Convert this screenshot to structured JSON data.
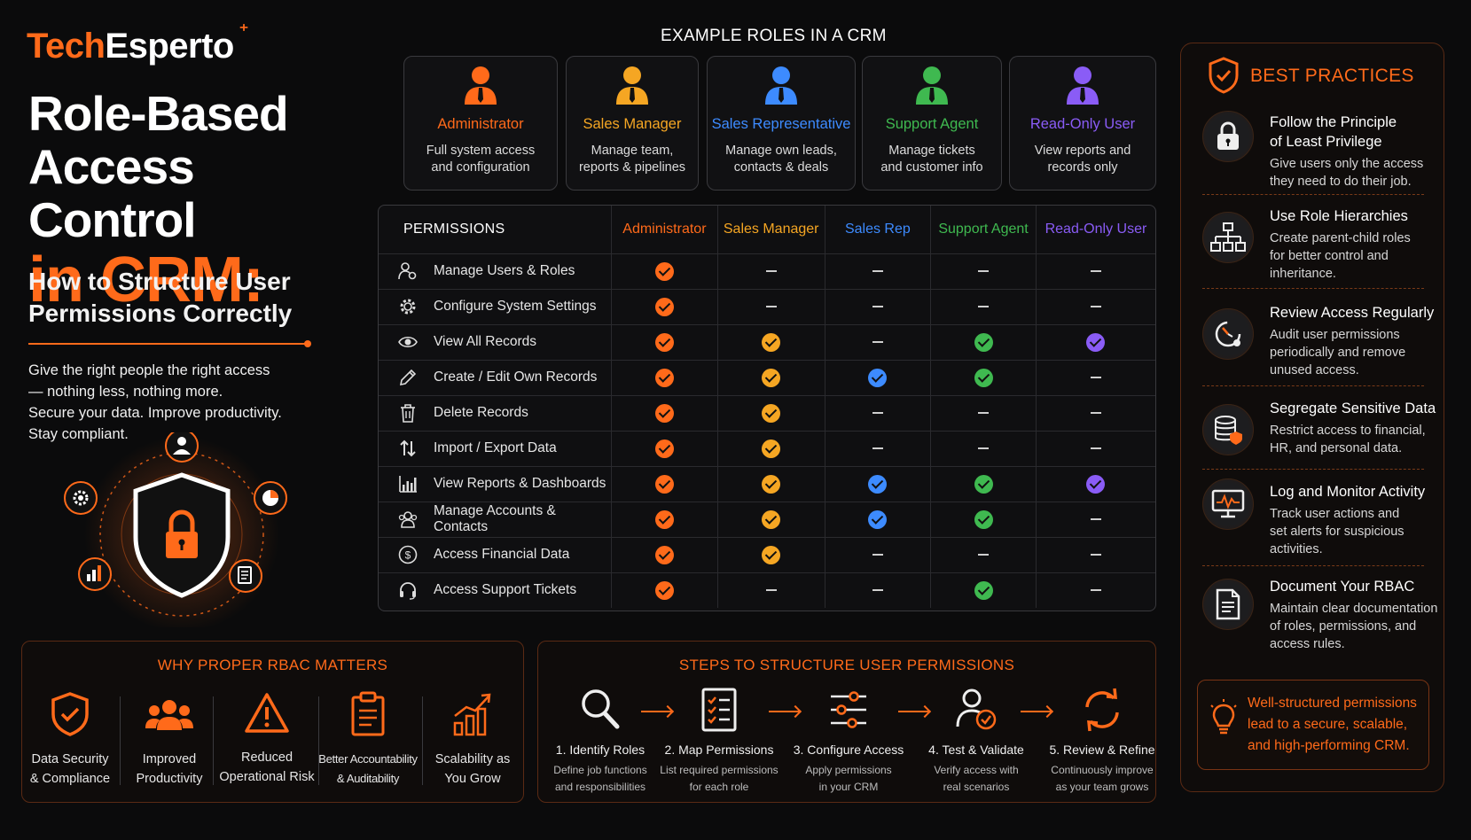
{
  "brand": {
    "part1": "Tech",
    "part2": "Esperto"
  },
  "hero": {
    "line1": "Role-Based",
    "line2": "Access Control",
    "line3": "in CRM:",
    "subtitle": "How to Structure User Permissions Correctly",
    "text": [
      "Give the right people the right access",
      "— nothing less, nothing more.",
      "Secure your data. Improve productivity.",
      "Stay compliant."
    ]
  },
  "roles_title": "EXAMPLE ROLES IN A CRM",
  "roles": [
    {
      "name": "Administrator",
      "desc": [
        "Full system access",
        "and configuration"
      ],
      "color": "#ff6a1a"
    },
    {
      "name": "Sales Manager",
      "desc": [
        "Manage team,",
        "reports & pipelines"
      ],
      "color": "#f5a623"
    },
    {
      "name": "Sales Representative",
      "desc": [
        "Manage own leads,",
        "contacts & deals"
      ],
      "color": "#3d8bff"
    },
    {
      "name": "Support Agent",
      "desc": [
        "Manage tickets",
        "and customer info"
      ],
      "color": "#3fb950"
    },
    {
      "name": "Read-Only User",
      "desc": [
        "View reports and",
        "records only"
      ],
      "color": "#8a5cf6"
    }
  ],
  "table": {
    "header": "PERMISSIONS",
    "columns": [
      {
        "label": "Administrator",
        "color": "#ff6a1a"
      },
      {
        "label": "Sales Manager",
        "color": "#f5a623"
      },
      {
        "label": "Sales Rep",
        "color": "#3d8bff"
      },
      {
        "label": "Support Agent",
        "color": "#3fb950"
      },
      {
        "label": "Read-Only User",
        "color": "#8a5cf6"
      }
    ],
    "rows": [
      {
        "label": "Manage Users & Roles",
        "icon": "users-gear-icon",
        "values": [
          1,
          0,
          0,
          0,
          0
        ]
      },
      {
        "label": "Configure System Settings",
        "icon": "gear-icon",
        "values": [
          1,
          0,
          0,
          0,
          0
        ]
      },
      {
        "label": "View All Records",
        "icon": "eye-icon",
        "values": [
          1,
          1,
          0,
          1,
          1
        ]
      },
      {
        "label": "Create / Edit Own Records",
        "icon": "pencil-icon",
        "values": [
          1,
          1,
          1,
          1,
          0
        ]
      },
      {
        "label": "Delete Records",
        "icon": "trash-icon",
        "values": [
          1,
          1,
          0,
          0,
          0
        ]
      },
      {
        "label": "Import / Export Data",
        "icon": "arrows-updown-icon",
        "values": [
          1,
          1,
          0,
          0,
          0
        ]
      },
      {
        "label": "View Reports & Dashboards",
        "icon": "bar-chart-icon",
        "values": [
          1,
          1,
          1,
          1,
          1
        ]
      },
      {
        "label": "Manage Accounts & Contacts",
        "icon": "contacts-icon",
        "values": [
          1,
          1,
          1,
          1,
          0
        ]
      },
      {
        "label": "Access Financial Data",
        "icon": "dollar-icon",
        "values": [
          1,
          1,
          0,
          0,
          0
        ]
      },
      {
        "label": "Access Support Tickets",
        "icon": "headset-icon",
        "values": [
          1,
          0,
          0,
          1,
          0
        ]
      }
    ]
  },
  "best_practices": {
    "title": "BEST PRACTICES",
    "items": [
      {
        "title": [
          "Follow the Principle",
          "of Least Privilege"
        ],
        "desc": [
          "Give users only the access",
          "they need to do their job."
        ],
        "icon": "lock-icon"
      },
      {
        "title": [
          "Use Role Hierarchies"
        ],
        "desc": [
          "Create parent-child roles",
          "for better control and",
          "inheritance."
        ],
        "icon": "hierarchy-icon"
      },
      {
        "title": [
          "Review Access Regularly"
        ],
        "desc": [
          "Audit user permissions",
          "periodically and remove",
          "unused access."
        ],
        "icon": "review-icon"
      },
      {
        "title": [
          "Segregate Sensitive Data"
        ],
        "desc": [
          "Restrict access to financial,",
          "HR, and personal data."
        ],
        "icon": "database-shield-icon"
      },
      {
        "title": [
          "Log and Monitor Activity"
        ],
        "desc": [
          "Track user actions and",
          "set alerts for suspicious",
          "activities."
        ],
        "icon": "monitor-icon"
      },
      {
        "title": [
          "Document Your RBAC"
        ],
        "desc": [
          "Maintain clear documentation",
          "of roles, permissions, and",
          "access rules."
        ],
        "icon": "document-icon"
      }
    ],
    "footer": [
      "Well-structured permissions",
      "lead to a secure, scalable,",
      "and high-performing CRM."
    ]
  },
  "why": {
    "title": "WHY PROPER RBAC MATTERS",
    "items": [
      {
        "label": [
          "Data Security",
          "& Compliance"
        ],
        "icon": "shield-check-icon"
      },
      {
        "label": [
          "Improved",
          "Productivity"
        ],
        "icon": "team-icon"
      },
      {
        "label": [
          "Reduced",
          "Operational Risk"
        ],
        "icon": "warning-icon"
      },
      {
        "label": [
          "Better Accountability",
          "& Auditability"
        ],
        "icon": "clipboard-icon"
      },
      {
        "label": [
          "Scalability as",
          "You Grow"
        ],
        "icon": "growth-chart-icon"
      }
    ]
  },
  "steps": {
    "title": "STEPS TO STRUCTURE USER PERMISSIONS",
    "items": [
      {
        "title": "1. Identify Roles",
        "desc": [
          "Define job functions",
          "and responsibilities"
        ],
        "icon": "magnifier-icon"
      },
      {
        "title": "2. Map Permissions",
        "desc": [
          "List required permissions",
          "for each role"
        ],
        "icon": "checklist-icon"
      },
      {
        "title": "3. Configure Access",
        "desc": [
          "Apply permissions",
          "in your CRM"
        ],
        "icon": "sliders-icon"
      },
      {
        "title": "4. Test & Validate",
        "desc": [
          "Verify access with",
          "real scenarios"
        ],
        "icon": "user-check-icon"
      },
      {
        "title": "5. Review & Refine",
        "desc": [
          "Continuously improve",
          "as your team grows"
        ],
        "icon": "refresh-icon"
      }
    ]
  }
}
